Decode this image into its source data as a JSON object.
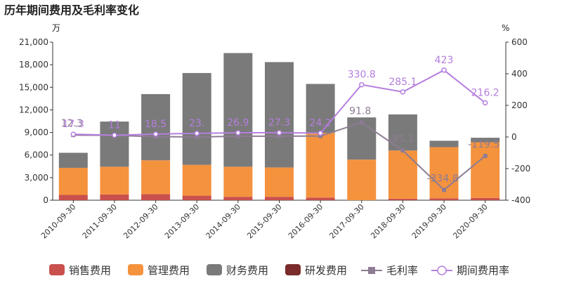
{
  "chart_data": {
    "type": "bar",
    "title": "历年期间费用及毛利率变化",
    "left_unit": "万",
    "right_unit": "%",
    "categories": [
      "2010-09-30",
      "2011-09-30",
      "2012-09-30",
      "2013-09-30",
      "2014-09-30",
      "2015-09-30",
      "2016-09-30",
      "2017-09-30",
      "2018-09-30",
      "2019-09-30",
      "2020-09-30"
    ],
    "ylim": [
      0,
      21000
    ],
    "yticks": [
      "0",
      "3,000",
      "6,000",
      "9,000",
      "12,000",
      "15,000",
      "18,000",
      "21,000"
    ],
    "y2lim": [
      -400,
      600
    ],
    "y2ticks": [
      "-400",
      "-200",
      "0",
      "200",
      "400",
      "600"
    ],
    "series": [
      {
        "name": "销售费用",
        "kind": "bar",
        "color": "#c9504d",
        "values": [
          700,
          750,
          800,
          600,
          450,
          450,
          350,
          0,
          200,
          250,
          300
        ]
      },
      {
        "name": "管理费用",
        "kind": "bar",
        "color": "#f5923e",
        "values": [
          3600,
          3700,
          4500,
          4100,
          4000,
          3900,
          8600,
          5400,
          6400,
          6800,
          7400
        ]
      },
      {
        "name": "财务费用",
        "kind": "bar",
        "color": "#7a7a7a",
        "values": [
          2000,
          6000,
          8800,
          12200,
          15100,
          14000,
          6500,
          5600,
          4800,
          850,
          600
        ]
      },
      {
        "name": "研发费用",
        "kind": "bar",
        "color": "#7b2b2b",
        "values": [
          0,
          0,
          0,
          0,
          0,
          0,
          0,
          0,
          0,
          0,
          0
        ]
      },
      {
        "name": "毛利率",
        "kind": "line",
        "axis": "right",
        "color": "#8d7c93",
        "values": [
          null,
          null,
          null,
          null,
          null,
          null,
          null,
          91.8,
          -85.1,
          -334.8,
          -119.5
        ],
        "labels": [
          "12.3",
          "",
          "",
          "",
          "",
          "",
          "",
          "91.8",
          "-85.1",
          "-334.8",
          "-119.5"
        ]
      },
      {
        "name": "期间费用率",
        "kind": "line",
        "axis": "right",
        "color": "#b57ede",
        "values": [
          17.3,
          11,
          18.5,
          23,
          26.9,
          27.3,
          24.2,
          330.8,
          285.1,
          423,
          216.2
        ],
        "labels": [
          "17.3",
          "11",
          "18.5",
          "23.",
          "26.9",
          "27.3",
          "24.2",
          "330.8",
          "285.1",
          "423",
          "216.2"
        ]
      }
    ],
    "margin_early_values": [
      12.3,
      10,
      2,
      0,
      5,
      5,
      6
    ],
    "legend_position": "bottom"
  }
}
